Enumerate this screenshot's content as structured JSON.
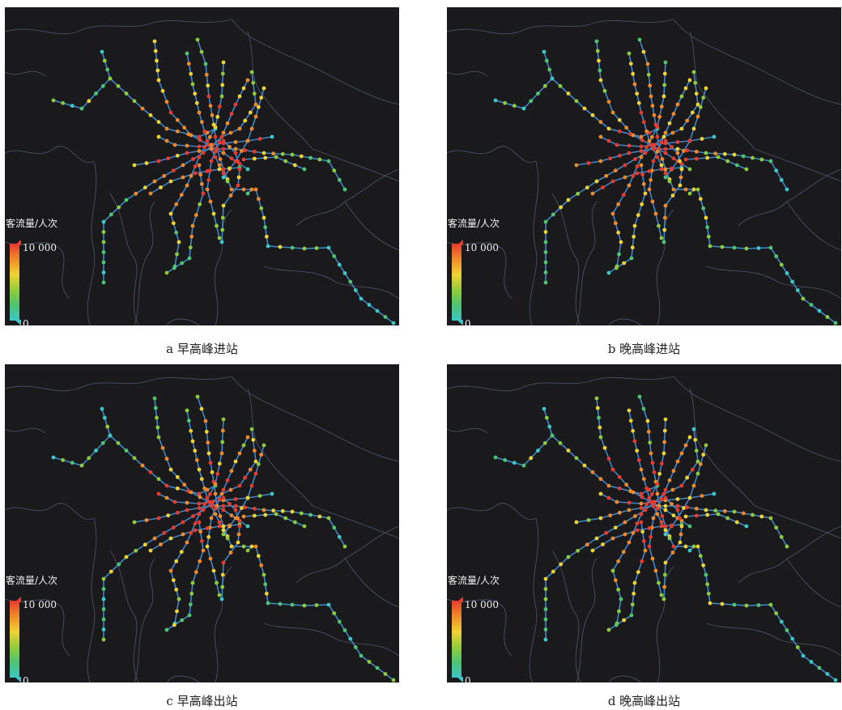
{
  "panels": [
    {
      "id": "a",
      "caption": "a 早高峰进站",
      "pattern": "morning-entry"
    },
    {
      "id": "b",
      "caption": "b 晚高峰进站",
      "pattern": "evening-entry"
    },
    {
      "id": "c",
      "caption": "c 早高峰出站",
      "pattern": "morning-exit"
    },
    {
      "id": "d",
      "caption": "d 晚高峰出站",
      "pattern": "evening-exit"
    }
  ],
  "legend": {
    "title": "客流量/人次",
    "max_label": "10 000",
    "min_label": "0",
    "scale": [
      "#3cc6c8",
      "#4cc470",
      "#8ccc3c",
      "#f0d230",
      "#f08a28",
      "#e83a2e"
    ]
  },
  "colors": {
    "background": "#1a1a1c",
    "line": "#3f86c6",
    "boundary": "#4a4f63"
  }
}
